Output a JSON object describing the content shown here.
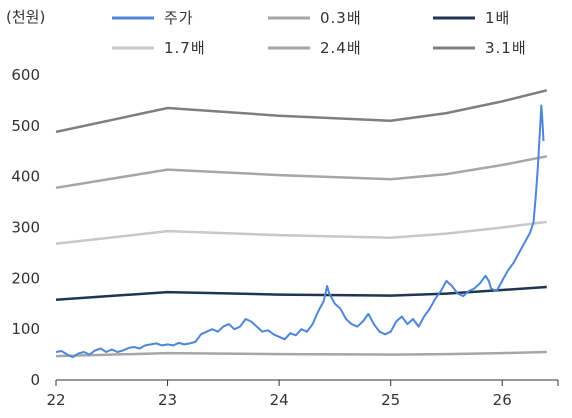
{
  "chart_data": {
    "type": "line",
    "title": "",
    "ylabel": "(천원)",
    "xlabel": "",
    "xlim": [
      22,
      26.5
    ],
    "ylim": [
      0,
      600
    ],
    "x_ticks": [
      "22",
      "23",
      "24",
      "25",
      "26"
    ],
    "y_ticks": [
      "0",
      "100",
      "200",
      "300",
      "400",
      "500",
      "600"
    ],
    "grid": false,
    "legend_position": "top",
    "series": [
      {
        "name": "주가",
        "color": "#4f86d8",
        "points": [
          [
            22.0,
            55
          ],
          [
            22.05,
            57
          ],
          [
            22.1,
            50
          ],
          [
            22.15,
            45
          ],
          [
            22.2,
            52
          ],
          [
            22.25,
            55
          ],
          [
            22.3,
            50
          ],
          [
            22.35,
            58
          ],
          [
            22.4,
            62
          ],
          [
            22.45,
            55
          ],
          [
            22.5,
            60
          ],
          [
            22.55,
            55
          ],
          [
            22.6,
            58
          ],
          [
            22.65,
            63
          ],
          [
            22.7,
            65
          ],
          [
            22.75,
            62
          ],
          [
            22.8,
            68
          ],
          [
            22.85,
            70
          ],
          [
            22.9,
            72
          ],
          [
            22.95,
            68
          ],
          [
            23.0,
            70
          ],
          [
            23.05,
            68
          ],
          [
            23.1,
            73
          ],
          [
            23.15,
            70
          ],
          [
            23.2,
            72
          ],
          [
            23.25,
            75
          ],
          [
            23.3,
            90
          ],
          [
            23.35,
            95
          ],
          [
            23.4,
            100
          ],
          [
            23.45,
            95
          ],
          [
            23.5,
            105
          ],
          [
            23.55,
            110
          ],
          [
            23.6,
            100
          ],
          [
            23.65,
            105
          ],
          [
            23.7,
            120
          ],
          [
            23.75,
            115
          ],
          [
            23.8,
            105
          ],
          [
            23.85,
            95
          ],
          [
            23.9,
            98
          ],
          [
            23.95,
            90
          ],
          [
            24.0,
            85
          ],
          [
            24.05,
            80
          ],
          [
            24.1,
            92
          ],
          [
            24.15,
            88
          ],
          [
            24.2,
            100
          ],
          [
            24.25,
            95
          ],
          [
            24.3,
            110
          ],
          [
            24.35,
            135
          ],
          [
            24.4,
            155
          ],
          [
            24.43,
            185
          ],
          [
            24.45,
            170
          ],
          [
            24.5,
            150
          ],
          [
            24.55,
            140
          ],
          [
            24.6,
            120
          ],
          [
            24.65,
            110
          ],
          [
            24.7,
            105
          ],
          [
            24.75,
            115
          ],
          [
            24.8,
            130
          ],
          [
            24.85,
            110
          ],
          [
            24.9,
            95
          ],
          [
            24.95,
            90
          ],
          [
            25.0,
            95
          ],
          [
            25.05,
            115
          ],
          [
            25.1,
            125
          ],
          [
            25.15,
            110
          ],
          [
            25.2,
            120
          ],
          [
            25.25,
            105
          ],
          [
            25.3,
            125
          ],
          [
            25.35,
            140
          ],
          [
            25.4,
            160
          ],
          [
            25.45,
            175
          ],
          [
            25.5,
            195
          ],
          [
            25.55,
            185
          ],
          [
            25.6,
            170
          ],
          [
            25.65,
            165
          ],
          [
            25.7,
            175
          ],
          [
            25.75,
            180
          ],
          [
            25.8,
            190
          ],
          [
            25.85,
            205
          ],
          [
            25.88,
            195
          ],
          [
            25.9,
            180
          ],
          [
            25.95,
            175
          ],
          [
            26.0,
            195
          ],
          [
            26.05,
            215
          ],
          [
            26.1,
            230
          ],
          [
            26.15,
            250
          ],
          [
            26.2,
            270
          ],
          [
            26.25,
            290
          ],
          [
            26.28,
            310
          ],
          [
            26.3,
            360
          ],
          [
            26.32,
            420
          ],
          [
            26.34,
            500
          ],
          [
            26.35,
            540
          ],
          [
            26.36,
            510
          ],
          [
            26.37,
            470
          ]
        ]
      },
      {
        "name": "0.3배",
        "color": "#a6a6a6",
        "points": [
          [
            22.0,
            47
          ],
          [
            23.0,
            53
          ],
          [
            24.0,
            51
          ],
          [
            25.0,
            50
          ],
          [
            25.5,
            51
          ],
          [
            26.0,
            53
          ],
          [
            26.4,
            55
          ]
        ]
      },
      {
        "name": "1배",
        "color": "#1f3550",
        "points": [
          [
            22.0,
            158
          ],
          [
            23.0,
            173
          ],
          [
            24.0,
            168
          ],
          [
            25.0,
            166
          ],
          [
            25.5,
            170
          ],
          [
            26.0,
            177
          ],
          [
            26.4,
            183
          ]
        ]
      },
      {
        "name": "1.7배",
        "color": "#c8c8c8",
        "points": [
          [
            22.0,
            268
          ],
          [
            23.0,
            293
          ],
          [
            24.0,
            285
          ],
          [
            25.0,
            280
          ],
          [
            25.5,
            288
          ],
          [
            26.0,
            300
          ],
          [
            26.4,
            311
          ]
        ]
      },
      {
        "name": "2.4배",
        "color": "#a6a6a6",
        "points": [
          [
            22.0,
            378
          ],
          [
            23.0,
            414
          ],
          [
            24.0,
            403
          ],
          [
            25.0,
            395
          ],
          [
            25.5,
            405
          ],
          [
            26.0,
            423
          ],
          [
            26.4,
            440
          ]
        ]
      },
      {
        "name": "3.1배",
        "color": "#7f7f7f",
        "points": [
          [
            22.0,
            488
          ],
          [
            23.0,
            535
          ],
          [
            24.0,
            520
          ],
          [
            25.0,
            510
          ],
          [
            25.5,
            525
          ],
          [
            26.0,
            548
          ],
          [
            26.4,
            570
          ]
        ]
      }
    ]
  }
}
